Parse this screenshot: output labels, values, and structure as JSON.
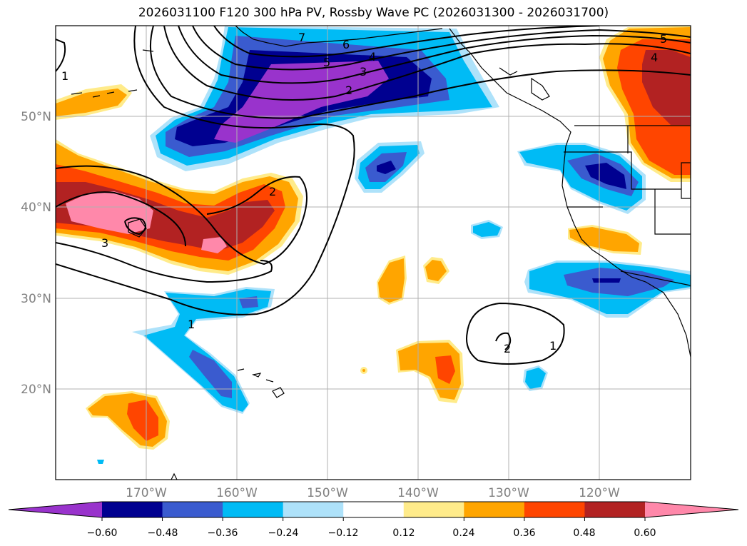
{
  "title": "2026031100 F120 300 hPa PV, Rossby Wave PC (2026031300 - 2026031700)",
  "map": {
    "lat_labels": [
      "50°N",
      "40°N",
      "30°N",
      "20°N"
    ],
    "lon_labels": [
      "170°W",
      "160°W",
      "150°W",
      "140°W",
      "130°W",
      "120°W"
    ],
    "gridline_color": "#b0b0b0",
    "contour_labels": [
      "7",
      "6",
      "5",
      "4",
      "3",
      "2",
      "1",
      "2",
      "3",
      "1",
      "2",
      "1",
      "5",
      "4"
    ]
  },
  "colorbar": {
    "colors": [
      "#9933cc",
      "#000090",
      "#3a5bcf",
      "#00bbf5",
      "#aee2fa",
      "#ffffff",
      "#ffeb8a",
      "#ffa500",
      "#ff4500",
      "#b22222",
      "#ff88aa"
    ],
    "tick_labels": [
      "−0.60",
      "−0.48",
      "−0.36",
      "−0.24",
      "−0.12",
      "0.12",
      "0.24",
      "0.36",
      "0.48",
      "0.60"
    ]
  }
}
